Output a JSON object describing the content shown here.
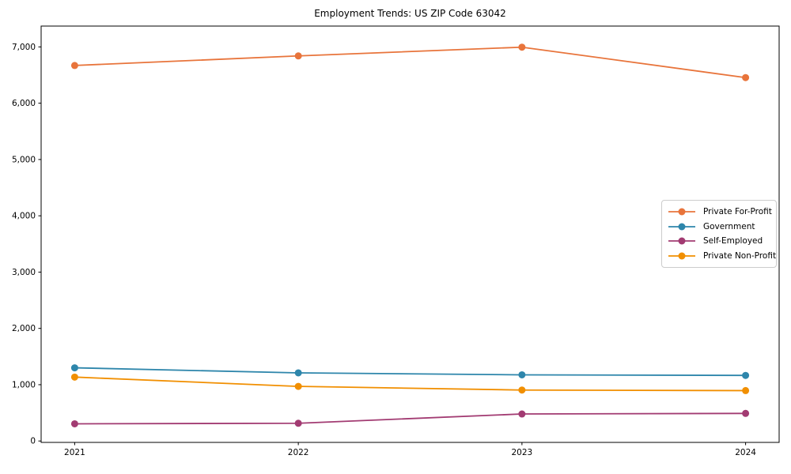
{
  "title": "Employment Trends: US ZIP Code 63042",
  "chart_data": {
    "type": "line",
    "title": "Employment Trends: US ZIP Code 63042",
    "x": [
      2021,
      2022,
      2023,
      2024
    ],
    "xtick_labels": [
      "2021",
      "2022",
      "2023",
      "2024"
    ],
    "series": [
      {
        "name": "Private For-Profit",
        "color": "#E8743B",
        "values": [
          6670,
          6840,
          6995,
          6455
        ]
      },
      {
        "name": "Government",
        "color": "#2E86AB",
        "values": [
          1300,
          1210,
          1175,
          1165
        ]
      },
      {
        "name": "Self-Employed",
        "color": "#A23B72",
        "values": [
          305,
          315,
          480,
          490
        ]
      },
      {
        "name": "Private Non-Profit",
        "color": "#F18F01",
        "values": [
          1135,
          970,
          905,
          895
        ]
      }
    ],
    "yticks": [
      0,
      1000,
      2000,
      3000,
      4000,
      5000,
      6000,
      7000
    ],
    "ytick_labels": [
      "0",
      "1,000",
      "2,000",
      "3,000",
      "4,000",
      "5,000",
      "6,000",
      "7,000"
    ],
    "xlim": [
      2020.85,
      2024.15
    ],
    "ylim": [
      -25,
      7370
    ],
    "xlabel": "",
    "ylabel": "",
    "grid": false,
    "legend_position": "center right",
    "marker": "circle"
  }
}
